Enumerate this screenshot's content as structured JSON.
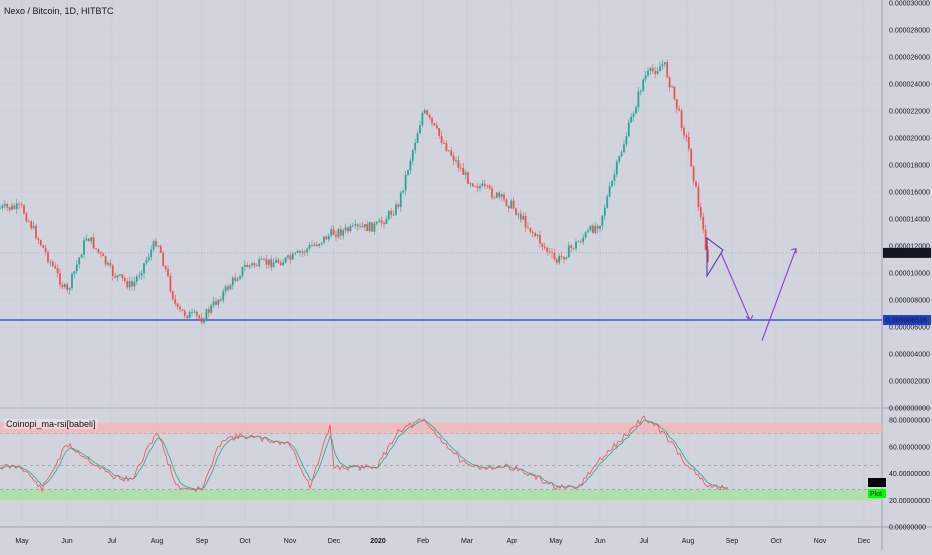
{
  "header": {
    "title": "Nexo / Bitcoin, 1D, HITBTC"
  },
  "oscillator": {
    "title": "Coinopi_ma-rsi[babeli]"
  },
  "colors": {
    "up": "#26a69a",
    "down": "#ef5350",
    "support": "#1e40c8",
    "projection": "#8b3fd6",
    "pattern": "#4d2c9e",
    "rsi_band_high": "#f4b4b4",
    "rsi_band_low": "#a8e2a6",
    "rsi_line": "#ef5350",
    "rsi_ma": "#26a69a"
  },
  "chart_data": [
    {
      "type": "candlestick",
      "title": "Nexo / Bitcoin, 1D, HITBTC",
      "y_axis_ticks": [
        "0.000030000",
        "0.000028000",
        "0.000026000",
        "0.000024000",
        "0.000022000",
        "0.000020000",
        "0.000018000",
        "0.000016000",
        "0.000014000",
        "0.000012000",
        "0.000010000",
        "0.000008000",
        "0.000006000",
        "0.000004000",
        "0.000002000",
        "0.000000000"
      ],
      "ylim": [
        0,
        3e-05
      ],
      "x_axis_ticks": [
        "May",
        "Jun",
        "Jul",
        "Aug",
        "Sep",
        "Oct",
        "Nov",
        "Dec",
        "2020",
        "Feb",
        "Mar",
        "Apr",
        "May",
        "Jun",
        "Jul",
        "Aug",
        "Sep",
        "Oct",
        "Nov",
        "Dec"
      ],
      "current_price_label": "0.000011490",
      "current_price": 1.149e-05,
      "support_label": "0.000006516",
      "support_price": 6.516e-06,
      "price_path": [
        [
          "May",
          1.48e-05
        ],
        [
          "Jun",
          8.5e-06
        ],
        [
          "Jun",
          1.28e-05
        ],
        [
          "Jul",
          1e-05
        ],
        [
          "Jul",
          9e-06
        ],
        [
          "Aug",
          1.25e-05
        ],
        [
          "Aug",
          7.2e-06
        ],
        [
          "Sep",
          6.6e-06
        ],
        [
          "Oct",
          1.05e-05
        ],
        [
          "Nov",
          1.1e-05
        ],
        [
          "Dec",
          1.3e-05
        ],
        [
          "2020",
          1.35e-05
        ],
        [
          "2020",
          1.5e-05
        ],
        [
          "Feb",
          2.2e-05
        ],
        [
          "Mar",
          1.7e-05
        ],
        [
          "Apr",
          1.5e-05
        ],
        [
          "May",
          1.08e-05
        ],
        [
          "Jun",
          1.38e-05
        ],
        [
          "Jul",
          2.45e-05
        ],
        [
          "Jul",
          2.55e-05
        ],
        [
          "Aug",
          1.95e-05
        ],
        [
          "Aug",
          1.1e-05
        ]
      ],
      "projection": [
        [
          "Aug",
          1.149e-05
        ],
        [
          "Sep",
          6.5e-06
        ],
        [
          "Oct",
          1.18e-05
        ]
      ]
    },
    {
      "type": "line",
      "title": "Coinopi_ma-rsi[babeli]",
      "y_axis_ticks": [
        "80.00000000",
        "60.00000000",
        "40.00000000",
        "20.00000000",
        "0.00000000"
      ],
      "ylim": [
        0,
        80
      ],
      "bands": {
        "overbought": [
          70,
          78
        ],
        "oversold": [
          20,
          28
        ]
      },
      "legend": [
        {
          "label": "Plot",
          "color": "#000000"
        },
        {
          "label": "Plot",
          "color": "#00ff00"
        }
      ],
      "rsi_path": [
        [
          "May",
          45
        ],
        [
          "May",
          28
        ],
        [
          "Jun",
          62
        ],
        [
          "Jul",
          38
        ],
        [
          "Jul",
          35
        ],
        [
          "Aug",
          72
        ],
        [
          "Aug",
          30
        ],
        [
          "Sep",
          28
        ],
        [
          "Sep",
          66
        ],
        [
          "Oct",
          68
        ],
        [
          "Nov",
          62
        ],
        [
          "Nov",
          30
        ],
        [
          "Nov",
          75
        ],
        [
          "Dec",
          45
        ],
        [
          "Dec",
          44
        ],
        [
          "2020",
          46
        ],
        [
          "2020",
          72
        ],
        [
          "Feb",
          80
        ],
        [
          "Mar",
          45
        ],
        [
          "Apr",
          45
        ],
        [
          "May",
          30
        ],
        [
          "May",
          28
        ],
        [
          "Jun",
          50
        ],
        [
          "Jul",
          82
        ],
        [
          "Jul",
          70
        ],
        [
          "Aug",
          46
        ],
        [
          "Aug",
          30
        ],
        [
          "Aug",
          30
        ]
      ]
    }
  ]
}
